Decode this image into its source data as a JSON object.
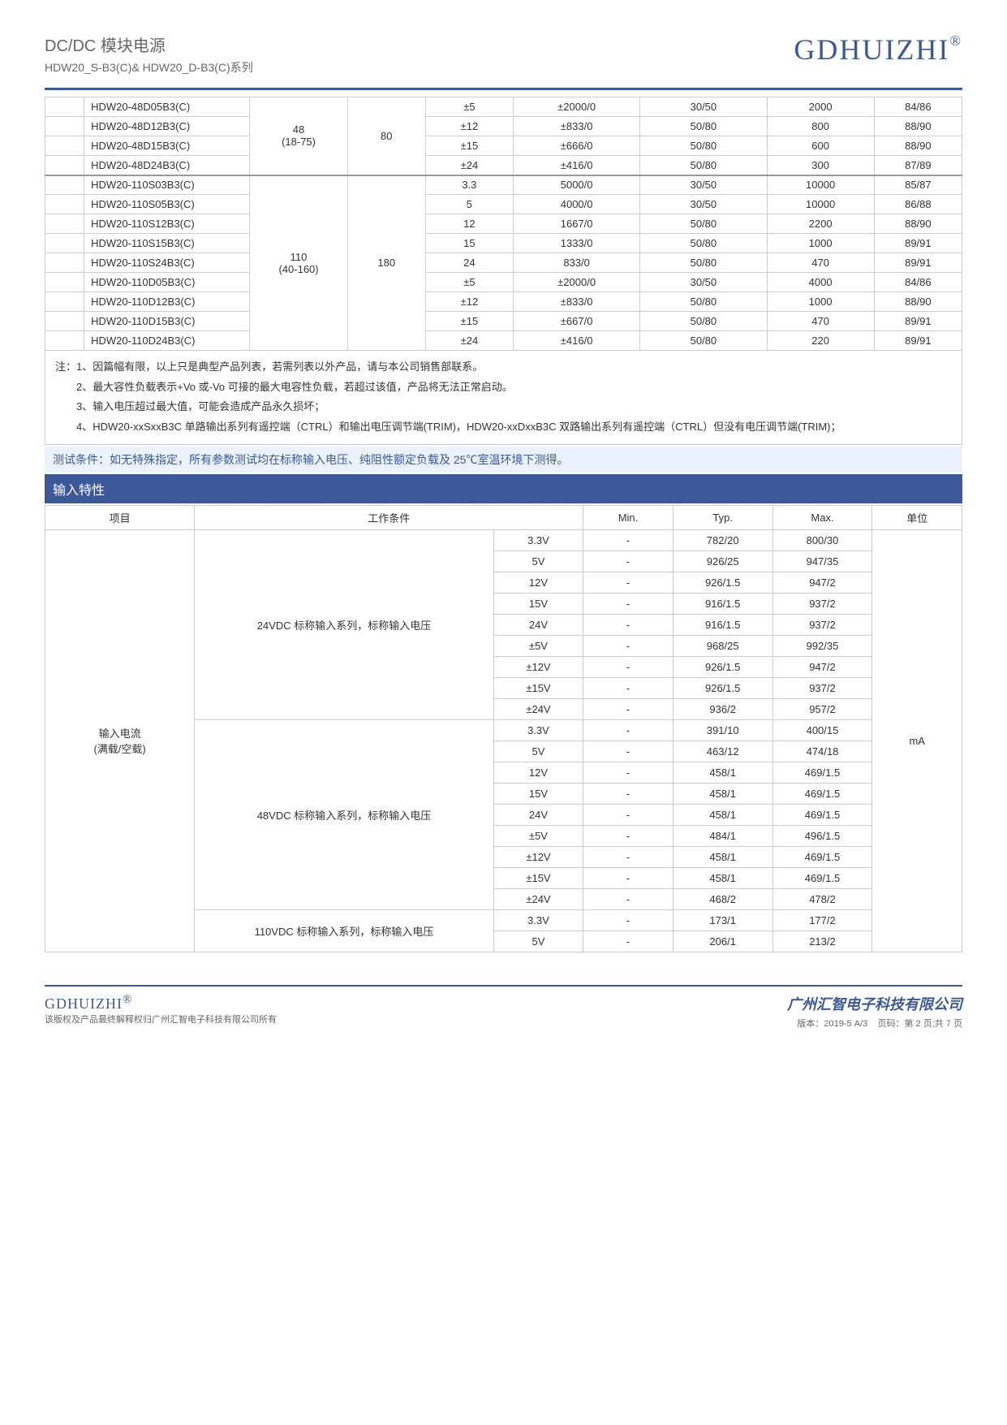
{
  "header": {
    "title": "DC/DC 模块电源",
    "subtitle": "HDW20_S-B3(C)& HDW20_D-B3(C)系列",
    "brand": "GDHUIZHI"
  },
  "watermark": "GDHUIZHI",
  "table1": {
    "group1": {
      "vin": "48",
      "vin_range": "(18-75)",
      "vmax": "80",
      "rows": [
        {
          "model": "HDW20-48D05B3(C)",
          "vout": "±5",
          "iout": "±2000/0",
          "reg": "30/50",
          "cap": "2000",
          "eff": "84/86"
        },
        {
          "model": "HDW20-48D12B3(C)",
          "vout": "±12",
          "iout": "±833/0",
          "reg": "50/80",
          "cap": "800",
          "eff": "88/90"
        },
        {
          "model": "HDW20-48D15B3(C)",
          "vout": "±15",
          "iout": "±666/0",
          "reg": "50/80",
          "cap": "600",
          "eff": "88/90"
        },
        {
          "model": "HDW20-48D24B3(C)",
          "vout": "±24",
          "iout": "±416/0",
          "reg": "50/80",
          "cap": "300",
          "eff": "87/89"
        }
      ]
    },
    "group2": {
      "vin": "110",
      "vin_range": "(40-160)",
      "vmax": "180",
      "rows": [
        {
          "model": "HDW20-110S03B3(C)",
          "vout": "3.3",
          "iout": "5000/0",
          "reg": "30/50",
          "cap": "10000",
          "eff": "85/87"
        },
        {
          "model": "HDW20-110S05B3(C)",
          "vout": "5",
          "iout": "4000/0",
          "reg": "30/50",
          "cap": "10000",
          "eff": "86/88"
        },
        {
          "model": "HDW20-110S12B3(C)",
          "vout": "12",
          "iout": "1667/0",
          "reg": "50/80",
          "cap": "2200",
          "eff": "88/90"
        },
        {
          "model": "HDW20-110S15B3(C)",
          "vout": "15",
          "iout": "1333/0",
          "reg": "50/80",
          "cap": "1000",
          "eff": "89/91"
        },
        {
          "model": "HDW20-110S24B3(C)",
          "vout": "24",
          "iout": "833/0",
          "reg": "50/80",
          "cap": "470",
          "eff": "89/91"
        },
        {
          "model": "HDW20-110D05B3(C)",
          "vout": "±5",
          "iout": "±2000/0",
          "reg": "30/50",
          "cap": "4000",
          "eff": "84/86"
        },
        {
          "model": "HDW20-110D12B3(C)",
          "vout": "±12",
          "iout": "±833/0",
          "reg": "50/80",
          "cap": "1000",
          "eff": "88/90"
        },
        {
          "model": "HDW20-110D15B3(C)",
          "vout": "±15",
          "iout": "±667/0",
          "reg": "50/80",
          "cap": "470",
          "eff": "89/91"
        },
        {
          "model": "HDW20-110D24B3(C)",
          "vout": "±24",
          "iout": "±416/0",
          "reg": "50/80",
          "cap": "220",
          "eff": "89/91"
        }
      ]
    }
  },
  "notes": {
    "n1": "注：1、因篇幅有限，以上只是典型产品列表，若需列表以外产品，请与本公司销售部联系。",
    "n2": "2、最大容性负载表示+Vo 或-Vo 可接的最大电容性负载，若超过该值，产品将无法正常启动。",
    "n3": "3、输入电压超过最大值，可能会造成产品永久损坏；",
    "n4": "4、HDW20-xxSxxB3C 单路输出系列有遥控端（CTRL）和输出电压调节端(TRIM)，HDW20-xxDxxB3C 双路输出系列有遥控端（CTRL）但没有电压调节端(TRIM)；"
  },
  "cond": "测试条件：如无特殊指定，所有参数测试均在标称输入电压、纯阻性额定负载及 25℃室温环境下测得。",
  "section": "输入特性",
  "table2": {
    "headers": {
      "item": "项目",
      "cond": "工作条件",
      "min": "Min.",
      "typ": "Typ.",
      "max": "Max.",
      "unit": "单位"
    },
    "item_label": "输入电流\n(满载/空载)",
    "unit": "mA",
    "grp24": {
      "label": "24VDC 标称输入系列，标称输入电压",
      "rows": [
        {
          "v": "3.3V",
          "min": "-",
          "typ": "782/20",
          "max": "800/30"
        },
        {
          "v": "5V",
          "min": "-",
          "typ": "926/25",
          "max": "947/35"
        },
        {
          "v": "12V",
          "min": "-",
          "typ": "926/1.5",
          "max": "947/2"
        },
        {
          "v": "15V",
          "min": "-",
          "typ": "916/1.5",
          "max": "937/2"
        },
        {
          "v": "24V",
          "min": "-",
          "typ": "916/1.5",
          "max": "937/2"
        },
        {
          "v": "±5V",
          "min": "-",
          "typ": "968/25",
          "max": "992/35"
        },
        {
          "v": "±12V",
          "min": "-",
          "typ": "926/1.5",
          "max": "947/2"
        },
        {
          "v": "±15V",
          "min": "-",
          "typ": "926/1.5",
          "max": "937/2"
        },
        {
          "v": "±24V",
          "min": "-",
          "typ": "936/2",
          "max": "957/2"
        }
      ]
    },
    "grp48": {
      "label": "48VDC 标称输入系列，标称输入电压",
      "rows": [
        {
          "v": "3.3V",
          "min": "-",
          "typ": "391/10",
          "max": "400/15"
        },
        {
          "v": "5V",
          "min": "-",
          "typ": "463/12",
          "max": "474/18"
        },
        {
          "v": "12V",
          "min": "-",
          "typ": "458/1",
          "max": "469/1.5"
        },
        {
          "v": "15V",
          "min": "-",
          "typ": "458/1",
          "max": "469/1.5"
        },
        {
          "v": "24V",
          "min": "-",
          "typ": "458/1",
          "max": "469/1.5"
        },
        {
          "v": "±5V",
          "min": "-",
          "typ": "484/1",
          "max": "496/1.5"
        },
        {
          "v": "±12V",
          "min": "-",
          "typ": "458/1",
          "max": "469/1.5"
        },
        {
          "v": "±15V",
          "min": "-",
          "typ": "458/1",
          "max": "469/1.5"
        },
        {
          "v": "±24V",
          "min": "-",
          "typ": "468/2",
          "max": "478/2"
        }
      ]
    },
    "grp110": {
      "label": "110VDC 标称输入系列，标称输入电压",
      "rows": [
        {
          "v": "3.3V",
          "min": "-",
          "typ": "173/1",
          "max": "177/2"
        },
        {
          "v": "5V",
          "min": "-",
          "typ": "206/1",
          "max": "213/2"
        }
      ]
    }
  },
  "footer": {
    "brand": "GDHUIZHI",
    "copyright": "该版权及产品最终解释权归广州汇智电子科技有限公司所有",
    "company": "广州汇智电子科技有限公司",
    "version": "版本：2019-5 A/3",
    "page": "页码：第 2 页;共 7 页"
  }
}
